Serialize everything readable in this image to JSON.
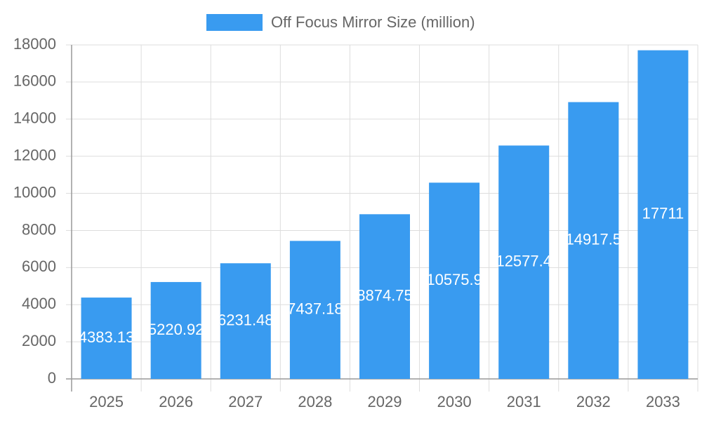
{
  "chart_data": {
    "type": "bar",
    "categories": [
      "2025",
      "2026",
      "2027",
      "2028",
      "2029",
      "2030",
      "2031",
      "2032",
      "2033"
    ],
    "series": [
      {
        "name": "Off Focus Mirror Size (million)",
        "color": "#399bf0",
        "values": [
          4383.13,
          5220.92,
          6231.48,
          7437.18,
          8874.75,
          10575.9,
          12577.4,
          14917.5,
          17711
        ]
      }
    ],
    "ylim": [
      0,
      18000
    ],
    "yticks": [
      0,
      2000,
      4000,
      6000,
      8000,
      10000,
      12000,
      14000,
      16000,
      18000
    ],
    "grid": true,
    "legend": "top"
  }
}
